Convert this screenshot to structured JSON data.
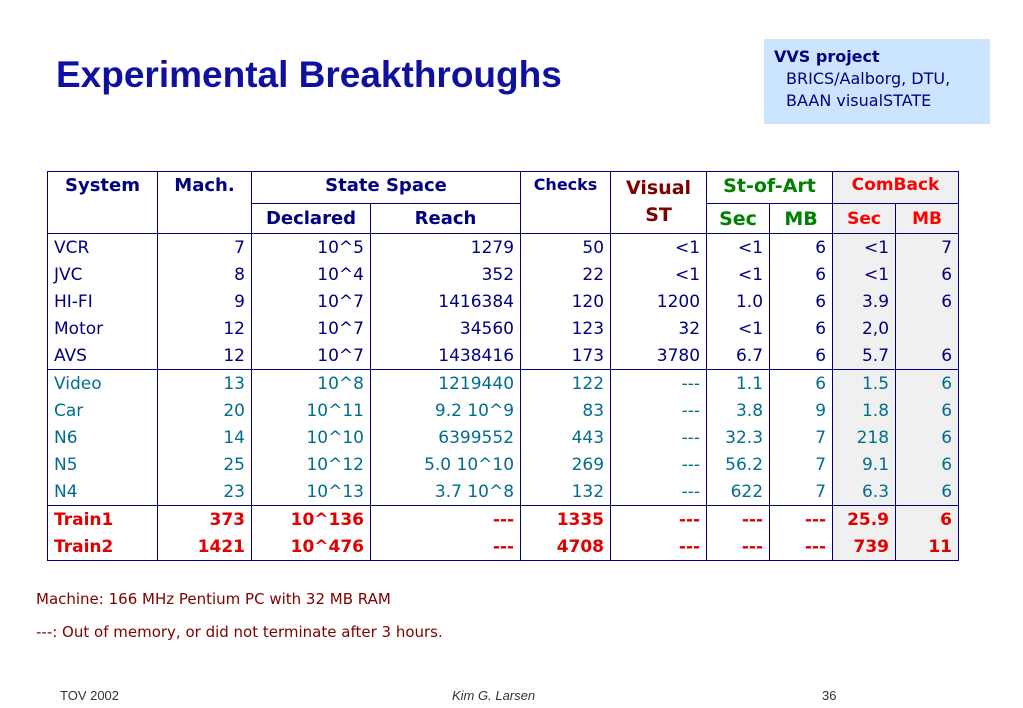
{
  "title": "Experimental Breakthroughs",
  "vvs": {
    "heading": "VVS project",
    "lines": [
      "BRICS/Aalborg, DTU,",
      "BAAN visualSTATE"
    ]
  },
  "table": {
    "headers": {
      "system": "System",
      "mach": "Mach.",
      "state_space": "State Space",
      "declared": "Declared",
      "reach": "Reach",
      "checks": "Checks",
      "visual_st_1": "Visual",
      "visual_st_2": "ST",
      "st_of_art": "St-of-Art",
      "comback": "ComBack",
      "sec": "Sec",
      "mb": "MB"
    },
    "group1": [
      [
        "VCR",
        "7",
        "10^5",
        "1279",
        "50",
        "<1",
        "<1",
        "6",
        "<1",
        "7"
      ],
      [
        "JVC",
        "8",
        "10^4",
        "352",
        "22",
        "<1",
        "<1",
        "6",
        "<1",
        "6"
      ],
      [
        "HI-FI",
        "9",
        "10^7",
        "1416384",
        "120",
        "1200",
        "1.0",
        "6",
        "3.9",
        "6"
      ],
      [
        "Motor",
        "12",
        "10^7",
        "34560",
        "123",
        "32",
        "<1",
        "6",
        "2,0",
        ""
      ],
      [
        "AVS",
        "12",
        "10^7",
        "1438416",
        "173",
        "3780",
        "6.7",
        "6",
        "5.7",
        "6"
      ]
    ],
    "group2": [
      [
        "Video",
        "13",
        "10^8",
        "1219440",
        "122",
        "---",
        "1.1",
        "6",
        "1.5",
        "6"
      ],
      [
        "Car",
        "20",
        "10^11",
        "9.2 10^9",
        "83",
        "---",
        "3.8",
        "9",
        "1.8",
        "6"
      ],
      [
        "N6",
        "14",
        "10^10",
        "6399552",
        "443",
        "---",
        "32.3",
        "7",
        "218",
        "6"
      ],
      [
        "N5",
        "25",
        "10^12",
        "5.0 10^10",
        "269",
        "---",
        "56.2",
        "7",
        "9.1",
        "6"
      ],
      [
        "N4",
        "23",
        "10^13",
        "3.7 10^8",
        "132",
        "---",
        "622",
        "7",
        "6.3",
        "6"
      ]
    ],
    "group3": [
      [
        "Train1",
        "373",
        "10^136",
        "---",
        "1335",
        "---",
        "---",
        "---",
        "25.9",
        "6"
      ],
      [
        "Train2",
        "1421",
        "10^476",
        "---",
        "4708",
        "---",
        "---",
        "---",
        "739",
        "11"
      ]
    ]
  },
  "notes": {
    "machine": "Machine:  166 MHz Pentium PC with 32 MB RAM",
    "memory": "---: Out of memory, or did not terminate after 3 hours."
  },
  "footer": {
    "left": "TOV 2002",
    "center": "Kim G. Larsen",
    "right": "36"
  }
}
